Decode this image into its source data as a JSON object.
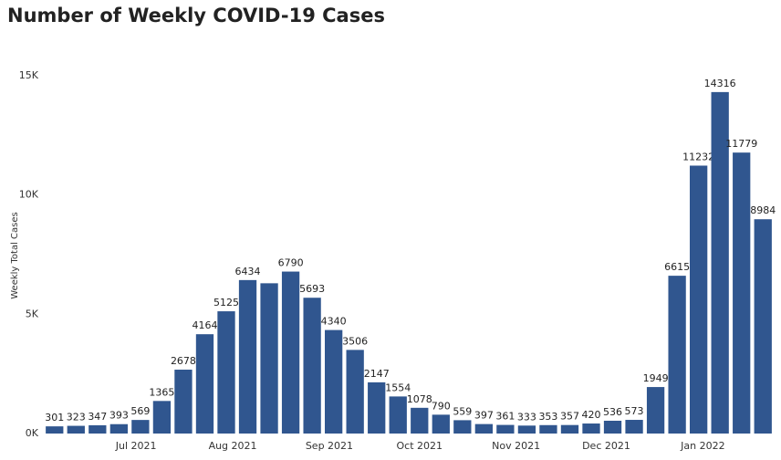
{
  "chart_data": {
    "type": "bar",
    "title": "Number of Weekly COVID-19 Cases",
    "y_label": "Weekly Total Cases",
    "categories": [
      null,
      null,
      null,
      null,
      null,
      null,
      null,
      null,
      null,
      null,
      null,
      null,
      null,
      null,
      null,
      null,
      null,
      null,
      null,
      null,
      null,
      null,
      null,
      null,
      null,
      null,
      null,
      null,
      null,
      null,
      null,
      null,
      null,
      null
    ],
    "values": [
      301,
      323,
      347,
      393,
      569,
      1365,
      2678,
      4164,
      5125,
      6434,
      6300,
      6790,
      5693,
      4340,
      3506,
      2147,
      1554,
      1078,
      790,
      559,
      397,
      361,
      333,
      353,
      357,
      420,
      536,
      573,
      1949,
      6615,
      11232,
      14316,
      11779,
      8984
    ],
    "value_labels": [
      "301",
      "323",
      "347",
      "393",
      "569",
      "1365",
      "2678",
      "4164",
      "5125",
      "6434",
      null,
      "6790",
      "5693",
      "4340",
      "3506",
      "2147",
      "1554",
      "1078",
      "790",
      "559",
      "397",
      "361",
      "333",
      "353",
      "357",
      "420",
      "536",
      "573",
      "1949",
      "6615",
      "11232",
      "14316",
      "11779",
      "8984"
    ],
    "color": "#30568f",
    "xlim": [
      -0.5,
      33.5
    ],
    "xticks": [
      {
        "value": 3.8,
        "label": "Jul 2021"
      },
      {
        "value": 8.3,
        "label": "Aug 2021"
      },
      {
        "value": 12.8,
        "label": "Sep 2021"
      },
      {
        "value": 17.0,
        "label": "Oct 2021"
      },
      {
        "value": 21.5,
        "label": "Nov 2021"
      },
      {
        "value": 25.7,
        "label": "Dec 2021"
      },
      {
        "value": 30.2,
        "label": "Jan 2022"
      }
    ],
    "ylim": [
      0,
      15000
    ],
    "yticks": [
      {
        "value": 0,
        "label": "0K"
      },
      {
        "value": 5000,
        "label": "5K"
      },
      {
        "value": 10000,
        "label": "10K"
      },
      {
        "value": 15000,
        "label": "15K"
      }
    ],
    "grid": false
  }
}
